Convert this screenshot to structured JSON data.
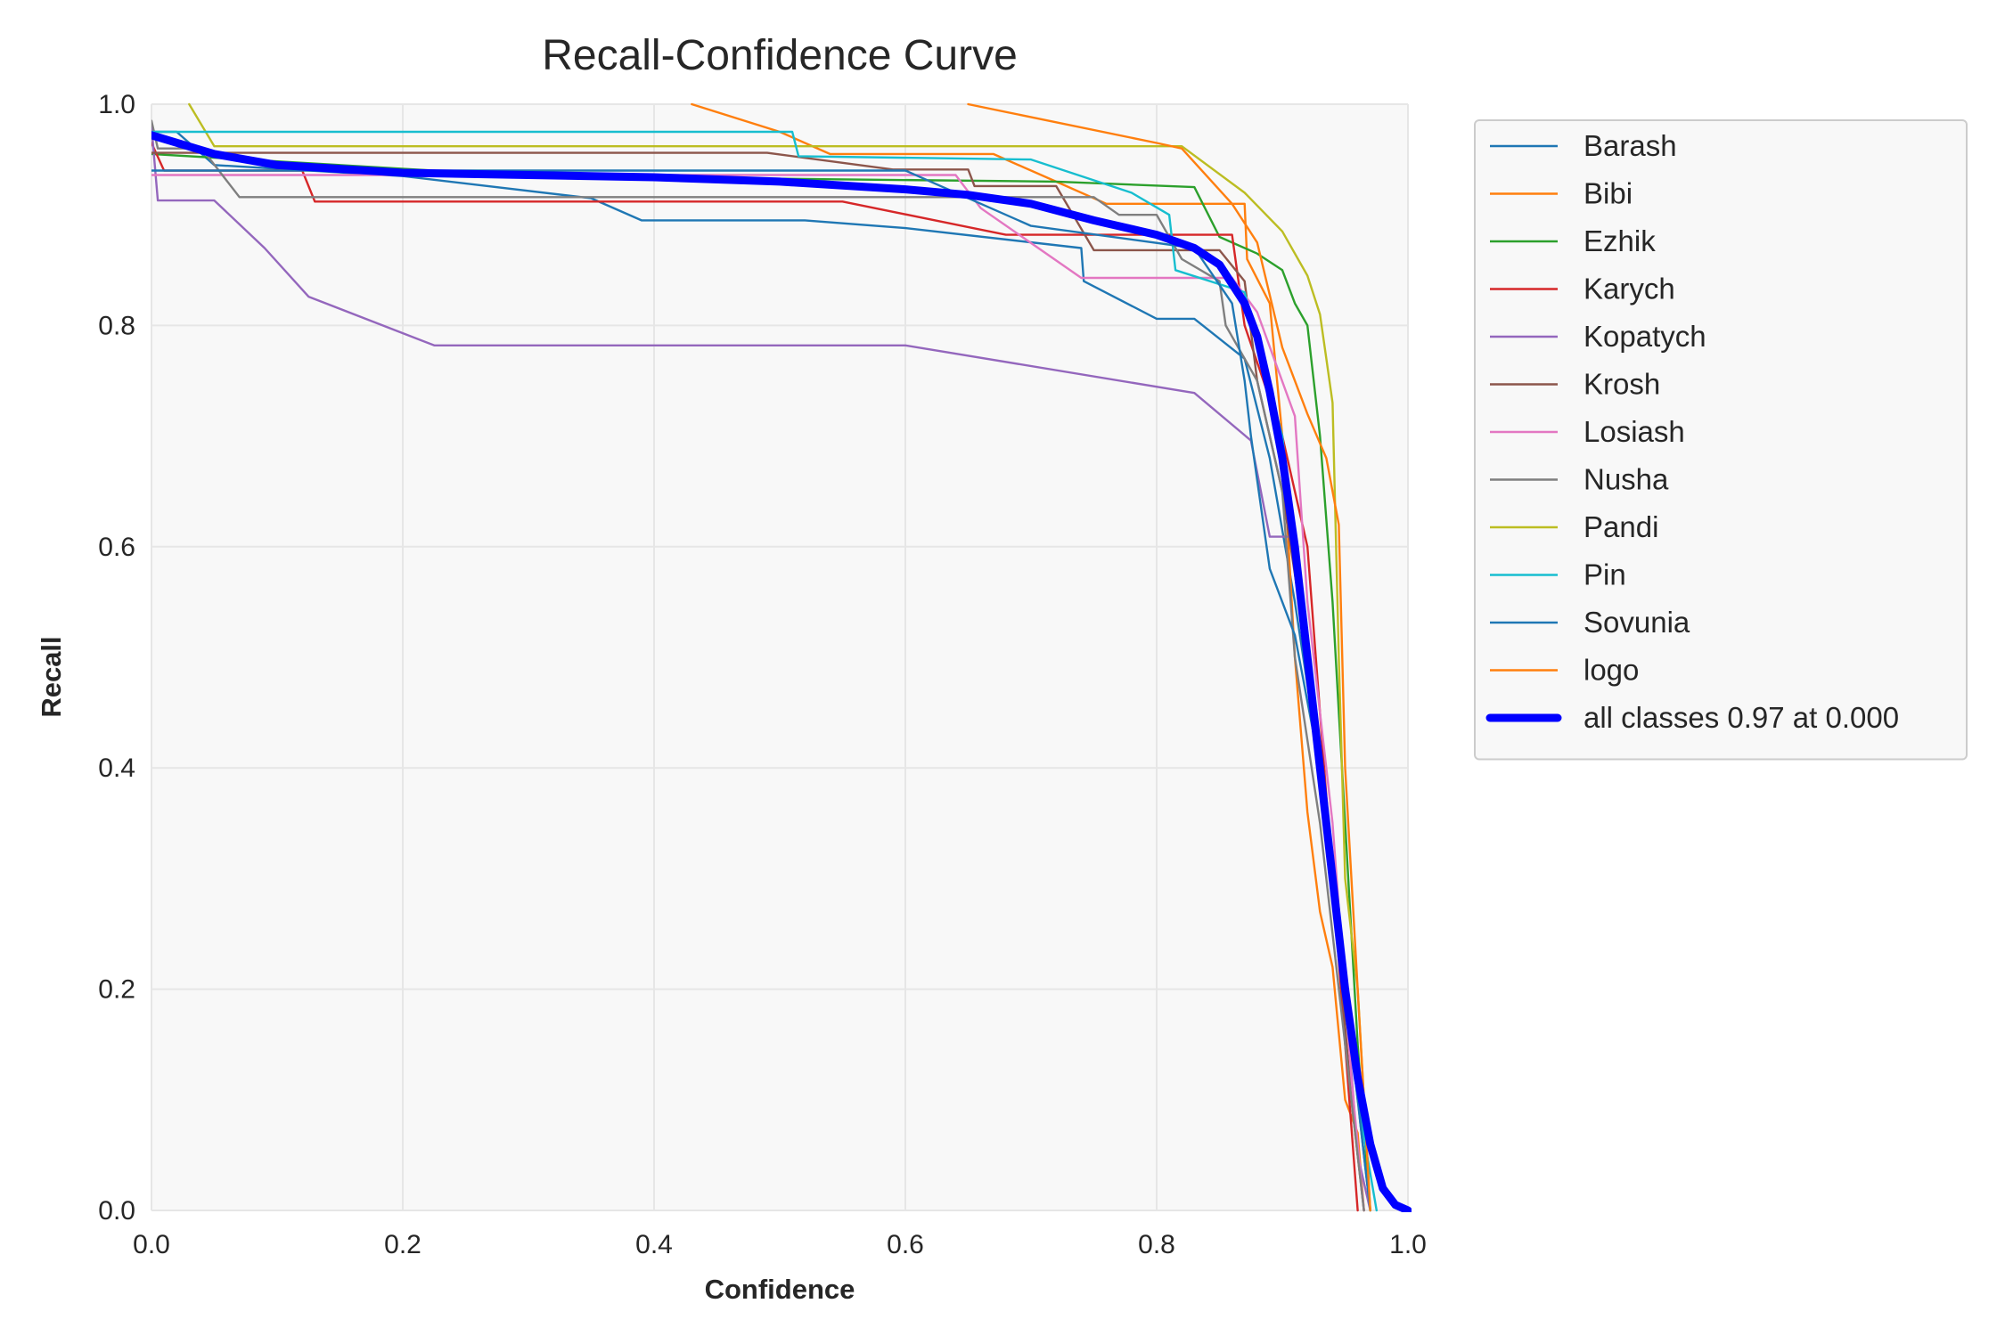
{
  "chart_data": {
    "type": "line",
    "title": "Recall-Confidence Curve",
    "xlabel": "Confidence",
    "ylabel": "Recall",
    "xlim": [
      0.0,
      1.0
    ],
    "ylim": [
      0.0,
      1.0
    ],
    "xticks": [
      "0.0",
      "0.2",
      "0.4",
      "0.6",
      "0.8",
      "1.0"
    ],
    "yticks": [
      "0.0",
      "0.2",
      "0.4",
      "0.6",
      "0.8",
      "1.0"
    ],
    "grid": true,
    "legend_position": "outside-upper-right",
    "series": [
      {
        "name": "Barash",
        "color": "#1f77b4",
        "points": [
          [
            0,
            0.975
          ],
          [
            0.02,
            0.975
          ],
          [
            0.05,
            0.945
          ],
          [
            0.2,
            0.935
          ],
          [
            0.35,
            0.915
          ],
          [
            0.39,
            0.895
          ],
          [
            0.52,
            0.895
          ],
          [
            0.6,
            0.888
          ],
          [
            0.74,
            0.87
          ],
          [
            0.742,
            0.84
          ],
          [
            0.8,
            0.806
          ],
          [
            0.83,
            0.806
          ],
          [
            0.87,
            0.77
          ],
          [
            0.89,
            0.68
          ],
          [
            0.91,
            0.55
          ],
          [
            0.93,
            0.4
          ],
          [
            0.95,
            0.22
          ],
          [
            0.962,
            0.08
          ],
          [
            0.97,
            0.0
          ]
        ]
      },
      {
        "name": "Bibi",
        "color": "#ff7f0e",
        "points": [
          [
            0.43,
            1.0
          ],
          [
            0.5,
            0.975
          ],
          [
            0.54,
            0.955
          ],
          [
            0.67,
            0.955
          ],
          [
            0.72,
            0.93
          ],
          [
            0.76,
            0.91
          ],
          [
            0.87,
            0.91
          ],
          [
            0.872,
            0.86
          ],
          [
            0.89,
            0.82
          ],
          [
            0.9,
            0.7
          ],
          [
            0.91,
            0.5
          ],
          [
            0.92,
            0.36
          ],
          [
            0.93,
            0.27
          ],
          [
            0.94,
            0.22
          ],
          [
            0.95,
            0.1
          ],
          [
            0.96,
            0.07
          ],
          [
            0.965,
            0.0
          ]
        ]
      },
      {
        "name": "Ezhik",
        "color": "#2ca02c",
        "points": [
          [
            0,
            0.955
          ],
          [
            0.3,
            0.935
          ],
          [
            0.72,
            0.93
          ],
          [
            0.83,
            0.925
          ],
          [
            0.85,
            0.88
          ],
          [
            0.88,
            0.865
          ],
          [
            0.9,
            0.85
          ],
          [
            0.91,
            0.82
          ],
          [
            0.92,
            0.8
          ],
          [
            0.93,
            0.7
          ],
          [
            0.94,
            0.55
          ],
          [
            0.95,
            0.35
          ],
          [
            0.96,
            0.15
          ],
          [
            0.97,
            0.0
          ]
        ]
      },
      {
        "name": "Karych",
        "color": "#d62728",
        "points": [
          [
            0,
            0.965
          ],
          [
            0.01,
            0.94
          ],
          [
            0.12,
            0.94
          ],
          [
            0.13,
            0.912
          ],
          [
            0.55,
            0.912
          ],
          [
            0.68,
            0.882
          ],
          [
            0.86,
            0.882
          ],
          [
            0.87,
            0.8
          ],
          [
            0.9,
            0.7
          ],
          [
            0.92,
            0.6
          ],
          [
            0.93,
            0.45
          ],
          [
            0.94,
            0.3
          ],
          [
            0.95,
            0.15
          ],
          [
            0.96,
            0.0
          ]
        ]
      },
      {
        "name": "Kopatych",
        "color": "#9467bd",
        "points": [
          [
            0,
            0.98
          ],
          [
            0.005,
            0.913
          ],
          [
            0.05,
            0.913
          ],
          [
            0.09,
            0.87
          ],
          [
            0.125,
            0.826
          ],
          [
            0.225,
            0.782
          ],
          [
            0.6,
            0.782
          ],
          [
            0.83,
            0.739
          ],
          [
            0.875,
            0.696
          ],
          [
            0.89,
            0.609
          ],
          [
            0.91,
            0.609
          ],
          [
            0.93,
            0.4
          ],
          [
            0.95,
            0.2
          ],
          [
            0.96,
            0.05
          ],
          [
            0.97,
            0.0
          ]
        ]
      },
      {
        "name": "Krosh",
        "color": "#8c564b",
        "points": [
          [
            0,
            0.956
          ],
          [
            0.49,
            0.956
          ],
          [
            0.59,
            0.941
          ],
          [
            0.65,
            0.941
          ],
          [
            0.655,
            0.926
          ],
          [
            0.72,
            0.926
          ],
          [
            0.75,
            0.868
          ],
          [
            0.85,
            0.868
          ],
          [
            0.87,
            0.84
          ],
          [
            0.88,
            0.75
          ],
          [
            0.9,
            0.65
          ],
          [
            0.92,
            0.5
          ],
          [
            0.94,
            0.3
          ],
          [
            0.955,
            0.1
          ],
          [
            0.965,
            0.0
          ]
        ]
      },
      {
        "name": "Losiash",
        "color": "#e377c2",
        "points": [
          [
            0,
            0.936
          ],
          [
            0.64,
            0.936
          ],
          [
            0.66,
            0.906
          ],
          [
            0.74,
            0.843
          ],
          [
            0.86,
            0.843
          ],
          [
            0.88,
            0.812
          ],
          [
            0.91,
            0.718
          ],
          [
            0.92,
            0.55
          ],
          [
            0.94,
            0.35
          ],
          [
            0.955,
            0.12
          ],
          [
            0.965,
            0.0
          ]
        ]
      },
      {
        "name": "Nusha",
        "color": "#7f7f7f",
        "points": [
          [
            0,
            0.985
          ],
          [
            0.005,
            0.96
          ],
          [
            0.04,
            0.96
          ],
          [
            0.07,
            0.916
          ],
          [
            0.65,
            0.916
          ],
          [
            0.75,
            0.916
          ],
          [
            0.77,
            0.9
          ],
          [
            0.8,
            0.9
          ],
          [
            0.82,
            0.86
          ],
          [
            0.85,
            0.84
          ],
          [
            0.855,
            0.8
          ],
          [
            0.88,
            0.75
          ],
          [
            0.9,
            0.65
          ],
          [
            0.91,
            0.5
          ],
          [
            0.93,
            0.35
          ],
          [
            0.95,
            0.15
          ],
          [
            0.965,
            0.0
          ]
        ]
      },
      {
        "name": "Pandi",
        "color": "#bcbd22",
        "points": [
          [
            0.03,
            1.0
          ],
          [
            0.05,
            0.962
          ],
          [
            0.82,
            0.962
          ],
          [
            0.87,
            0.92
          ],
          [
            0.9,
            0.885
          ],
          [
            0.92,
            0.845
          ],
          [
            0.93,
            0.81
          ],
          [
            0.935,
            0.77
          ],
          [
            0.94,
            0.73
          ],
          [
            0.945,
            0.5
          ],
          [
            0.95,
            0.3
          ],
          [
            0.96,
            0.2
          ],
          [
            0.97,
            0.0
          ]
        ]
      },
      {
        "name": "Pin",
        "color": "#17becf",
        "points": [
          [
            0,
            0.975
          ],
          [
            0.51,
            0.975
          ],
          [
            0.515,
            0.953
          ],
          [
            0.7,
            0.95
          ],
          [
            0.78,
            0.92
          ],
          [
            0.81,
            0.9
          ],
          [
            0.815,
            0.85
          ],
          [
            0.87,
            0.83
          ],
          [
            0.9,
            0.7
          ],
          [
            0.92,
            0.5
          ],
          [
            0.94,
            0.3
          ],
          [
            0.96,
            0.1
          ],
          [
            0.975,
            0.0
          ]
        ]
      },
      {
        "name": "Sovunia",
        "color": "#1f77b4",
        "points": [
          [
            0,
            0.94
          ],
          [
            0.6,
            0.94
          ],
          [
            0.7,
            0.89
          ],
          [
            0.83,
            0.87
          ],
          [
            0.86,
            0.82
          ],
          [
            0.87,
            0.75
          ],
          [
            0.875,
            0.7
          ],
          [
            0.89,
            0.58
          ],
          [
            0.91,
            0.52
          ],
          [
            0.93,
            0.4
          ],
          [
            0.95,
            0.2
          ],
          [
            0.97,
            0.0
          ]
        ]
      },
      {
        "name": "logo",
        "color": "#ff7f0e",
        "points": [
          [
            0.65,
            1.0
          ],
          [
            0.8,
            0.965
          ],
          [
            0.82,
            0.96
          ],
          [
            0.86,
            0.91
          ],
          [
            0.88,
            0.875
          ],
          [
            0.9,
            0.78
          ],
          [
            0.92,
            0.72
          ],
          [
            0.935,
            0.68
          ],
          [
            0.945,
            0.62
          ],
          [
            0.95,
            0.4
          ],
          [
            0.96,
            0.2
          ],
          [
            0.97,
            0.0
          ]
        ]
      },
      {
        "name": "all classes 0.97 at 0.000",
        "color": "#0000ff",
        "bold": true,
        "points": [
          [
            0,
            0.972
          ],
          [
            0.05,
            0.955
          ],
          [
            0.1,
            0.945
          ],
          [
            0.2,
            0.938
          ],
          [
            0.3,
            0.936
          ],
          [
            0.4,
            0.934
          ],
          [
            0.5,
            0.93
          ],
          [
            0.6,
            0.923
          ],
          [
            0.65,
            0.918
          ],
          [
            0.7,
            0.91
          ],
          [
            0.75,
            0.895
          ],
          [
            0.8,
            0.882
          ],
          [
            0.83,
            0.87
          ],
          [
            0.85,
            0.855
          ],
          [
            0.87,
            0.82
          ],
          [
            0.88,
            0.79
          ],
          [
            0.89,
            0.74
          ],
          [
            0.9,
            0.68
          ],
          [
            0.91,
            0.6
          ],
          [
            0.92,
            0.5
          ],
          [
            0.93,
            0.4
          ],
          [
            0.94,
            0.3
          ],
          [
            0.95,
            0.2
          ],
          [
            0.96,
            0.12
          ],
          [
            0.97,
            0.06
          ],
          [
            0.98,
            0.02
          ],
          [
            0.99,
            0.005
          ],
          [
            1.0,
            0.0
          ]
        ]
      }
    ]
  }
}
